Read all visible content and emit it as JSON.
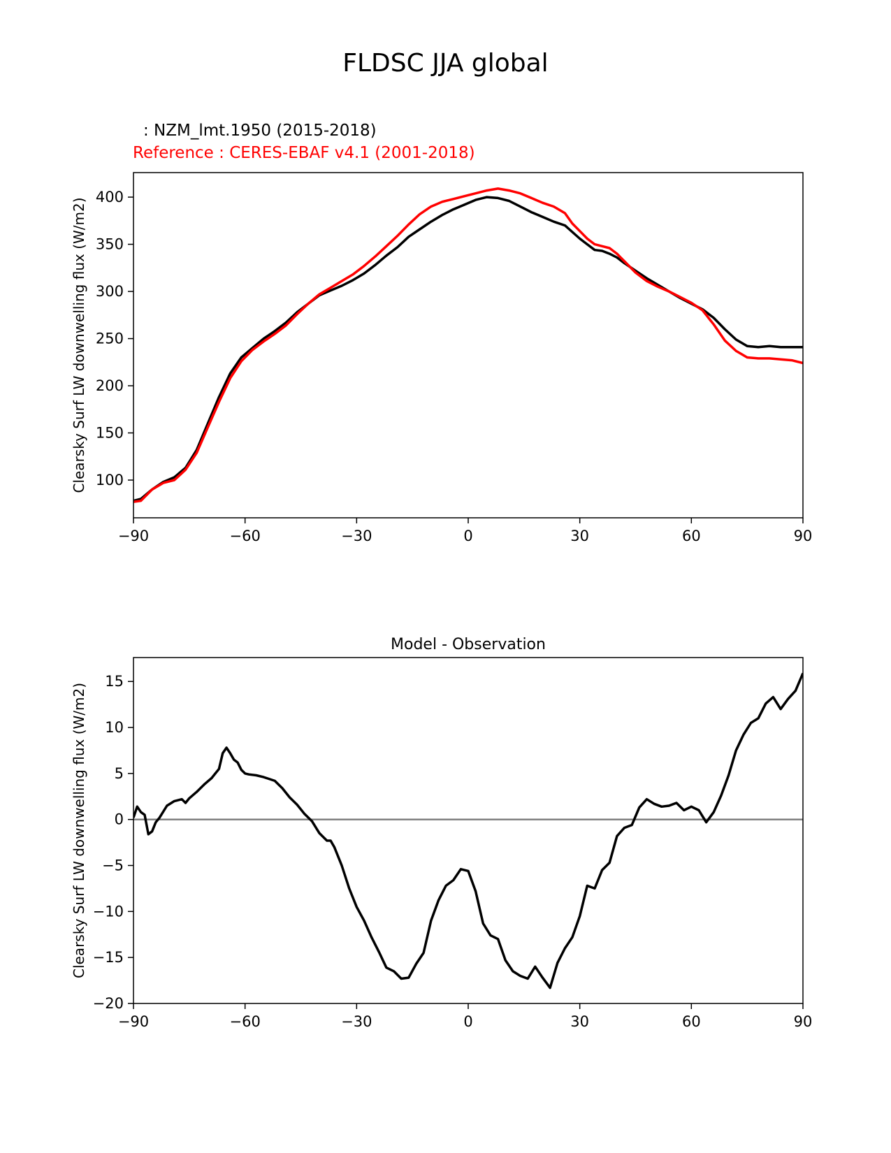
{
  "figure": {
    "title": "FLDSC JJA global",
    "case_label": ": NZM_lmt.1950 (2015-2018)",
    "reference_label": "Reference : CERES-EBAF v4.1 (2001-2018)"
  },
  "chart_data": [
    {
      "type": "line",
      "title": "",
      "xlabel": "",
      "ylabel": "Clearsky Surf LW downwelling flux (W/m2)",
      "xlim": [
        -90,
        90
      ],
      "ylim": [
        60,
        426
      ],
      "xticks": [
        -90,
        -60,
        -30,
        0,
        30,
        60,
        90
      ],
      "xtick_labels": [
        "−90",
        "−60",
        "−30",
        "0",
        "30",
        "60",
        "90"
      ],
      "yticks": [
        100,
        150,
        200,
        250,
        300,
        350,
        400
      ],
      "ytick_labels": [
        "100",
        "150",
        "200",
        "250",
        "300",
        "350",
        "400"
      ],
      "x": [
        -90,
        -88,
        -85,
        -82,
        -79,
        -76,
        -73,
        -70,
        -67,
        -64,
        -61,
        -58,
        -55,
        -52,
        -49,
        -46,
        -43,
        -40,
        -37,
        -34,
        -31,
        -28,
        -25,
        -22,
        -19,
        -16,
        -13,
        -10,
        -7,
        -4,
        -1,
        2,
        5,
        8,
        11,
        14,
        17,
        20,
        23,
        26,
        28,
        30,
        32,
        34,
        36,
        38,
        40,
        42,
        45,
        48,
        51,
        54,
        57,
        60,
        63,
        66,
        69,
        72,
        75,
        78,
        81,
        84,
        87,
        90
      ],
      "series": [
        {
          "name": "NZM_lmt.1950 (2015-2018)",
          "color": "#000000",
          "values": [
            78,
            80,
            90,
            98,
            103,
            113,
            132,
            160,
            188,
            213,
            230,
            240,
            250,
            258,
            267,
            278,
            287,
            296,
            301,
            306,
            312,
            319,
            328,
            338,
            347,
            358,
            366,
            374,
            381,
            387,
            392,
            397,
            400,
            399,
            396,
            390,
            384,
            379,
            374,
            370,
            363,
            356,
            350,
            344,
            343,
            340,
            336,
            330,
            322,
            314,
            307,
            300,
            293,
            287,
            281,
            272,
            260,
            249,
            242,
            241,
            242,
            241,
            241,
            241
          ]
        },
        {
          "name": "CERES-EBAF v4.1 (2001-2018)",
          "color": "#ff0000",
          "values": [
            77,
            78,
            90,
            97,
            100,
            111,
            129,
            156,
            183,
            208,
            226,
            238,
            247,
            255,
            264,
            276,
            287,
            297,
            304,
            311,
            318,
            327,
            337,
            348,
            359,
            371,
            382,
            390,
            395,
            398,
            401,
            404,
            407,
            409,
            407,
            404,
            399,
            394,
            390,
            383,
            372,
            364,
            356,
            350,
            348,
            346,
            340,
            332,
            320,
            311,
            305,
            300,
            294,
            288,
            280,
            265,
            248,
            237,
            230,
            229,
            229,
            228,
            227,
            224
          ]
        }
      ]
    },
    {
      "type": "line",
      "title": "Model - Observation",
      "xlabel": "",
      "ylabel": "Clearsky Surf LW downwelling flux (W/m2)",
      "xlim": [
        -90,
        90
      ],
      "ylim": [
        -20,
        17.6
      ],
      "xticks": [
        -90,
        -60,
        -30,
        0,
        30,
        60,
        90
      ],
      "xtick_labels": [
        "−90",
        "−60",
        "−30",
        "0",
        "30",
        "60",
        "90"
      ],
      "yticks": [
        -20,
        -15,
        -10,
        -5,
        0,
        5,
        10,
        15
      ],
      "ytick_labels": [
        "−20",
        "−15",
        "−10",
        "−5",
        "0",
        "5",
        "10",
        "15"
      ],
      "zero_line_color": "#808080",
      "x": [
        -90,
        -89,
        -88,
        -87,
        -86,
        -85,
        -84,
        -83,
        -81,
        -79,
        -77,
        -76,
        -75,
        -73,
        -71,
        -69,
        -67,
        -66,
        -65,
        -64,
        -63,
        -62,
        -61,
        -60,
        -59,
        -57,
        -55,
        -52,
        -50,
        -48,
        -46,
        -44,
        -42,
        -40,
        -38,
        -37,
        -36,
        -34,
        -32,
        -30,
        -28,
        -26,
        -24,
        -22,
        -20,
        -18,
        -16,
        -14,
        -12,
        -10,
        -8,
        -6,
        -4,
        -2,
        0,
        2,
        4,
        6,
        8,
        10,
        12,
        14,
        16,
        18,
        20,
        22,
        24,
        26,
        28,
        30,
        32,
        34,
        36,
        38,
        40,
        42,
        44,
        46,
        48,
        50,
        52,
        54,
        56,
        58,
        60,
        62,
        64,
        66,
        68,
        70,
        72,
        74,
        76,
        78,
        80,
        82,
        84,
        86,
        88,
        90
      ],
      "series": [
        {
          "name": "Model - Observation",
          "color": "#000000",
          "values": [
            0.2,
            1.4,
            0.8,
            0.5,
            -1.6,
            -1.3,
            -0.3,
            0.2,
            1.5,
            2.0,
            2.2,
            1.8,
            2.3,
            3.0,
            3.8,
            4.5,
            5.5,
            7.2,
            7.8,
            7.2,
            6.5,
            6.2,
            5.4,
            5.0,
            4.9,
            4.8,
            4.6,
            4.2,
            3.4,
            2.4,
            1.6,
            0.6,
            -0.2,
            -1.5,
            -2.3,
            -2.3,
            -3.0,
            -5.0,
            -7.5,
            -9.5,
            -11.0,
            -12.8,
            -14.4,
            -16.1,
            -16.5,
            -17.3,
            -17.2,
            -15.7,
            -14.5,
            -11.0,
            -8.8,
            -7.2,
            -6.6,
            -5.4,
            -5.6,
            -7.8,
            -11.3,
            -12.6,
            -13.0,
            -15.3,
            -16.5,
            -17.0,
            -17.3,
            -16.0,
            -17.2,
            -18.3,
            -15.6,
            -14.0,
            -12.8,
            -10.5,
            -7.2,
            -7.5,
            -5.5,
            -4.7,
            -1.8,
            -0.9,
            -0.6,
            1.3,
            2.2,
            1.7,
            1.4,
            1.5,
            1.8,
            1.0,
            1.4,
            1.0,
            -0.3,
            0.8,
            2.6,
            4.8,
            7.5,
            9.2,
            10.5,
            11.0,
            12.6,
            13.3,
            12.0,
            13.1,
            14.0,
            15.9
          ]
        }
      ]
    }
  ]
}
